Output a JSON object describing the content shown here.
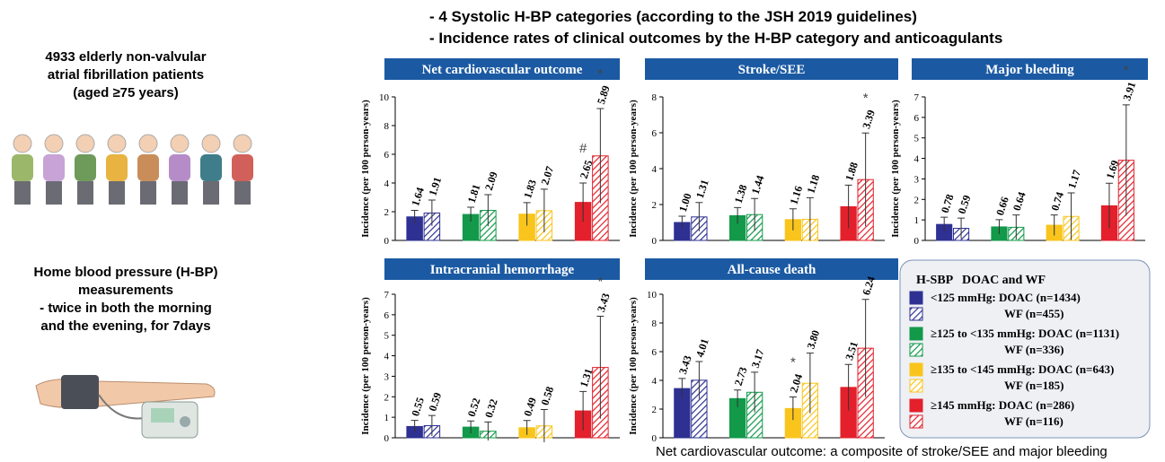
{
  "header": {
    "lines": [
      "- 4 Systolic H-BP categories (according to the JSH 2019 guidelines)",
      "- Incidence rates of clinical outcomes by the H-BP category and anticoagulants"
    ]
  },
  "left_panel": {
    "population": [
      "4933 elderly non-valvular",
      "atrial fibrillation patients",
      "(aged ≥75 years)"
    ],
    "measurement": [
      "Home blood pressure (H-BP)",
      "measurements",
      "- twice in both the morning",
      "and the evening, for 7days"
    ]
  },
  "legend": {
    "title": "H-SBP   DOAC and WF",
    "entries": [
      {
        "doac": "<125 mmHg: DOAC (n=1434)",
        "wf": "WF (n=455)",
        "color": "#2e3192"
      },
      {
        "doac": "≥125 to <135 mmHg: DOAC (n=1131)",
        "wf": "WF (n=336)",
        "color": "#12994a"
      },
      {
        "doac": "≥135 to <145 mmHg: DOAC (n=643)",
        "wf": "WF (n=185)",
        "color": "#f9c51d"
      },
      {
        "doac": "≥145 mmHg: DOAC (n=286)",
        "wf": "WF (n=116)",
        "color": "#e3202b"
      }
    ]
  },
  "chart_data": [
    {
      "type": "bar",
      "title": "Net cardiovascular outcome",
      "y_label": "Incidence (per 100 person-years)",
      "categories": [
        null,
        null,
        null,
        null
      ],
      "ylim": [
        0,
        10
      ],
      "yticks": [
        0,
        2,
        4,
        6,
        8,
        10
      ],
      "series": [
        {
          "values": [
            1.64,
            1.81,
            1.83,
            2.65
          ],
          "value_labels": [
            "1.64",
            "1.81",
            "1.83",
            "2.65"
          ],
          "errors": [
            0.45,
            0.5,
            0.8,
            1.35
          ],
          "markers": [
            null,
            null,
            null,
            "#"
          ],
          "hatched": false
        },
        {
          "values": [
            1.91,
            2.09,
            2.07,
            5.89
          ],
          "value_labels": [
            "1.91",
            "2.09",
            "2.07",
            "5.89"
          ],
          "errors": [
            0.9,
            1.1,
            1.5,
            3.3
          ],
          "markers": [
            null,
            null,
            null,
            "*"
          ],
          "hatched": true
        }
      ]
    },
    {
      "type": "bar",
      "title": "Stroke/SEE",
      "y_label": "Incidence (per 100 person-years)",
      "categories": [
        null,
        null,
        null,
        null
      ],
      "ylim": [
        0,
        8
      ],
      "yticks": [
        0,
        2,
        4,
        6,
        8
      ],
      "series": [
        {
          "values": [
            1.0,
            1.38,
            1.16,
            1.88
          ],
          "value_labels": [
            "1.00",
            "1.38",
            "1.16",
            "1.88"
          ],
          "errors": [
            0.35,
            0.45,
            0.6,
            1.2
          ],
          "markers": [
            null,
            null,
            null,
            null
          ],
          "hatched": false
        },
        {
          "values": [
            1.31,
            1.44,
            1.18,
            3.39
          ],
          "value_labels": [
            "1.31",
            "1.44",
            "1.18",
            "3.39"
          ],
          "errors": [
            0.8,
            0.9,
            1.2,
            2.6
          ],
          "markers": [
            null,
            null,
            null,
            "*"
          ],
          "hatched": true
        }
      ]
    },
    {
      "type": "bar",
      "title": "Major bleeding",
      "y_label": "Incidence (per 100 person-years)",
      "categories": [
        null,
        null,
        null,
        null
      ],
      "ylim": [
        0,
        7
      ],
      "yticks": [
        0,
        1,
        2,
        3,
        4,
        5,
        6,
        7
      ],
      "series": [
        {
          "values": [
            0.78,
            0.66,
            0.74,
            1.69
          ],
          "value_labels": [
            "0.78",
            "0.66",
            "0.74",
            "1.69"
          ],
          "errors": [
            0.35,
            0.35,
            0.5,
            1.1
          ],
          "markers": [
            null,
            null,
            null,
            null
          ],
          "hatched": false
        },
        {
          "values": [
            0.59,
            0.64,
            1.17,
            3.91
          ],
          "value_labels": [
            "0.59",
            "0.64",
            "1.17",
            "3.91"
          ],
          "errors": [
            0.5,
            0.6,
            1.15,
            2.7
          ],
          "markers": [
            null,
            null,
            null,
            "*"
          ],
          "hatched": true
        }
      ]
    },
    {
      "type": "bar",
      "title": "Intracranial hemorrhage",
      "y_label": "Incidence (per 100 person-years)",
      "categories": [
        null,
        null,
        null,
        null
      ],
      "ylim": [
        0,
        7
      ],
      "yticks": [
        0,
        1,
        2,
        3,
        4,
        5,
        6,
        7
      ],
      "series": [
        {
          "values": [
            0.55,
            0.52,
            0.49,
            1.31
          ],
          "value_labels": [
            "0.55",
            "0.52",
            "0.49",
            "1.31"
          ],
          "errors": [
            0.3,
            0.3,
            0.35,
            0.95
          ],
          "markers": [
            null,
            null,
            null,
            null
          ],
          "hatched": false
        },
        {
          "values": [
            0.59,
            0.32,
            0.58,
            3.43
          ],
          "value_labels": [
            "0.59",
            "0.32",
            "0.58",
            "3.43"
          ],
          "errors": [
            0.5,
            0.45,
            0.8,
            2.5
          ],
          "markers": [
            null,
            null,
            null,
            "*"
          ],
          "hatched": true
        }
      ]
    },
    {
      "type": "bar",
      "title": "All-cause death",
      "y_label": "Incidence (per 100 person-years)",
      "categories": [
        null,
        null,
        null,
        null
      ],
      "ylim": [
        0,
        10
      ],
      "yticks": [
        0,
        2,
        4,
        6,
        8,
        10
      ],
      "series": [
        {
          "values": [
            3.43,
            2.73,
            2.04,
            3.51
          ],
          "value_labels": [
            "3.43",
            "2.73",
            "2.04",
            "3.51"
          ],
          "errors": [
            0.7,
            0.6,
            0.8,
            1.6
          ],
          "markers": [
            null,
            null,
            "*",
            null
          ],
          "hatched": false
        },
        {
          "values": [
            4.01,
            3.17,
            3.8,
            6.24
          ],
          "value_labels": [
            "4.01",
            "3.17",
            "3.80",
            "6.24"
          ],
          "errors": [
            1.3,
            1.4,
            2.1,
            3.4
          ],
          "markers": [
            null,
            null,
            null,
            null
          ],
          "hatched": true
        }
      ]
    }
  ],
  "footnote": "Net cardiovascular outcome: a composite of stroke/SEE and major bleeding"
}
